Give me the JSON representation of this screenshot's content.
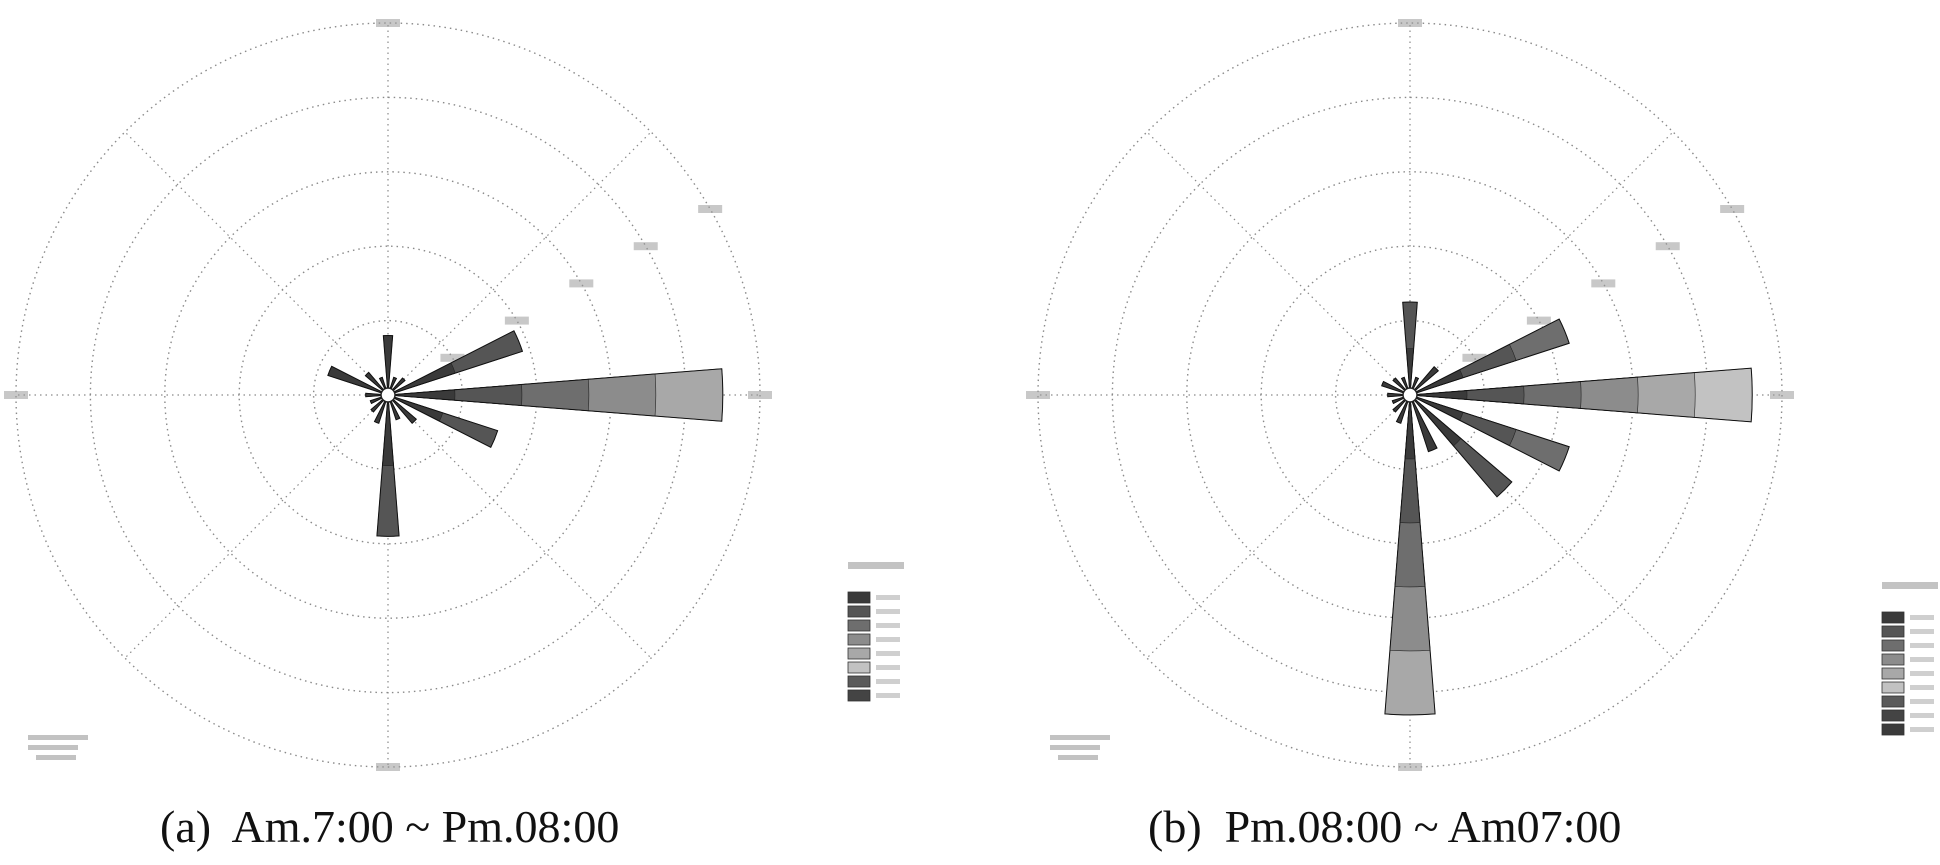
{
  "captions": {
    "a": "(a)  Am.7:00 ~ Pm.08:00",
    "b": "(b)  Pm.08:00 ~ Am07:00"
  },
  "colors": {
    "grid": "#8a8a8a",
    "ring_label_bg": "#9a9a9a",
    "legend_shades": [
      "#3a3a3a",
      "#555555",
      "#6e6e6e",
      "#8c8c8c",
      "#a8a8a8",
      "#c2c2c2",
      "#5a5a5a",
      "#444444"
    ]
  },
  "chart_data": [
    {
      "type": "polar-bar",
      "subtype": "wind-rose",
      "caption": "(a)  Am.7:00 ~ Pm.08:00",
      "directions_deg": [
        0,
        22.5,
        45,
        67.5,
        90,
        112.5,
        135,
        157.5,
        180,
        202.5,
        225,
        247.5,
        270,
        292.5,
        315,
        337.5
      ],
      "values": [
        0.16,
        0.05,
        0.06,
        0.38,
        0.9,
        0.31,
        0.1,
        0.07,
        0.38,
        0.08,
        0.06,
        0.05,
        0.06,
        0.17,
        0.08,
        0.05
      ],
      "rings": 5,
      "rmax": 1.0,
      "legend_entries": 8
    },
    {
      "type": "polar-bar",
      "subtype": "wind-rose",
      "caption": "(b)  Pm.08:00 ~ Am07:00",
      "directions_deg": [
        0,
        22.5,
        45,
        67.5,
        90,
        112.5,
        135,
        157.5,
        180,
        202.5,
        225,
        247.5,
        270,
        292.5,
        315,
        337.5
      ],
      "values": [
        0.25,
        0.05,
        0.1,
        0.45,
        0.92,
        0.45,
        0.36,
        0.16,
        0.86,
        0.08,
        0.06,
        0.05,
        0.06,
        0.08,
        0.06,
        0.05
      ],
      "rings": 5,
      "rmax": 1.0,
      "legend_entries": 9
    }
  ]
}
